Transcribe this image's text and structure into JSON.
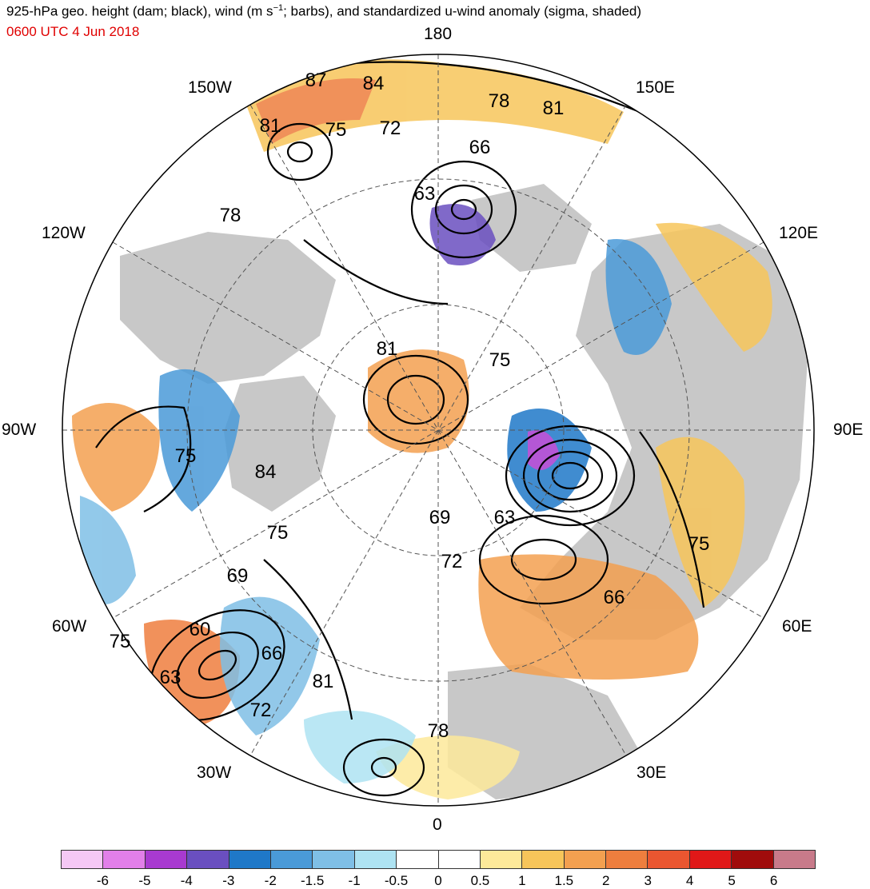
{
  "header": {
    "title_main": "925-hPa geo. height (dam; black), wind (m s",
    "title_sup": "−1",
    "title_rest": "; barbs), and standardized u-wind anomaly (sigma, shaded)",
    "valid_time": "0600 UTC 4 Jun 2018"
  },
  "longitude_labels": {
    "top": "180",
    "top_left": "150W",
    "top_right": "150E",
    "upper_left": "120W",
    "upper_right": "120E",
    "left": "90W",
    "right": "90E",
    "lower_left": "60W",
    "lower_right": "60E",
    "bottom_left": "30W",
    "bottom_right": "30E",
    "bottom": "0"
  },
  "contour_labels": [
    "87",
    "84",
    "81",
    "75",
    "72",
    "78",
    "81",
    "66",
    "63",
    "78",
    "81",
    "75",
    "75",
    "84",
    "69",
    "63",
    "75",
    "69",
    "72",
    "66",
    "75",
    "60",
    "66",
    "63",
    "81",
    "72",
    "78"
  ],
  "colorbar": {
    "colors": [
      "#f5c8f5",
      "#e27fe9",
      "#a83ad0",
      "#6a4fc0",
      "#1f78c8",
      "#4a9ad8",
      "#7fbfe6",
      "#aee3f2",
      "#ffffff",
      "#ffffff",
      "#fde99a",
      "#f7c55a",
      "#f3a050",
      "#ee7e3e",
      "#ea5630",
      "#e01818",
      "#a00c0c",
      "#c87a8a"
    ],
    "ticks": [
      "-6",
      "-5",
      "-4",
      "-3",
      "-2",
      "-1.5",
      "-1",
      "-0.5",
      "0",
      "0.5",
      "1",
      "1.5",
      "2",
      "3",
      "4",
      "5",
      "6"
    ]
  }
}
